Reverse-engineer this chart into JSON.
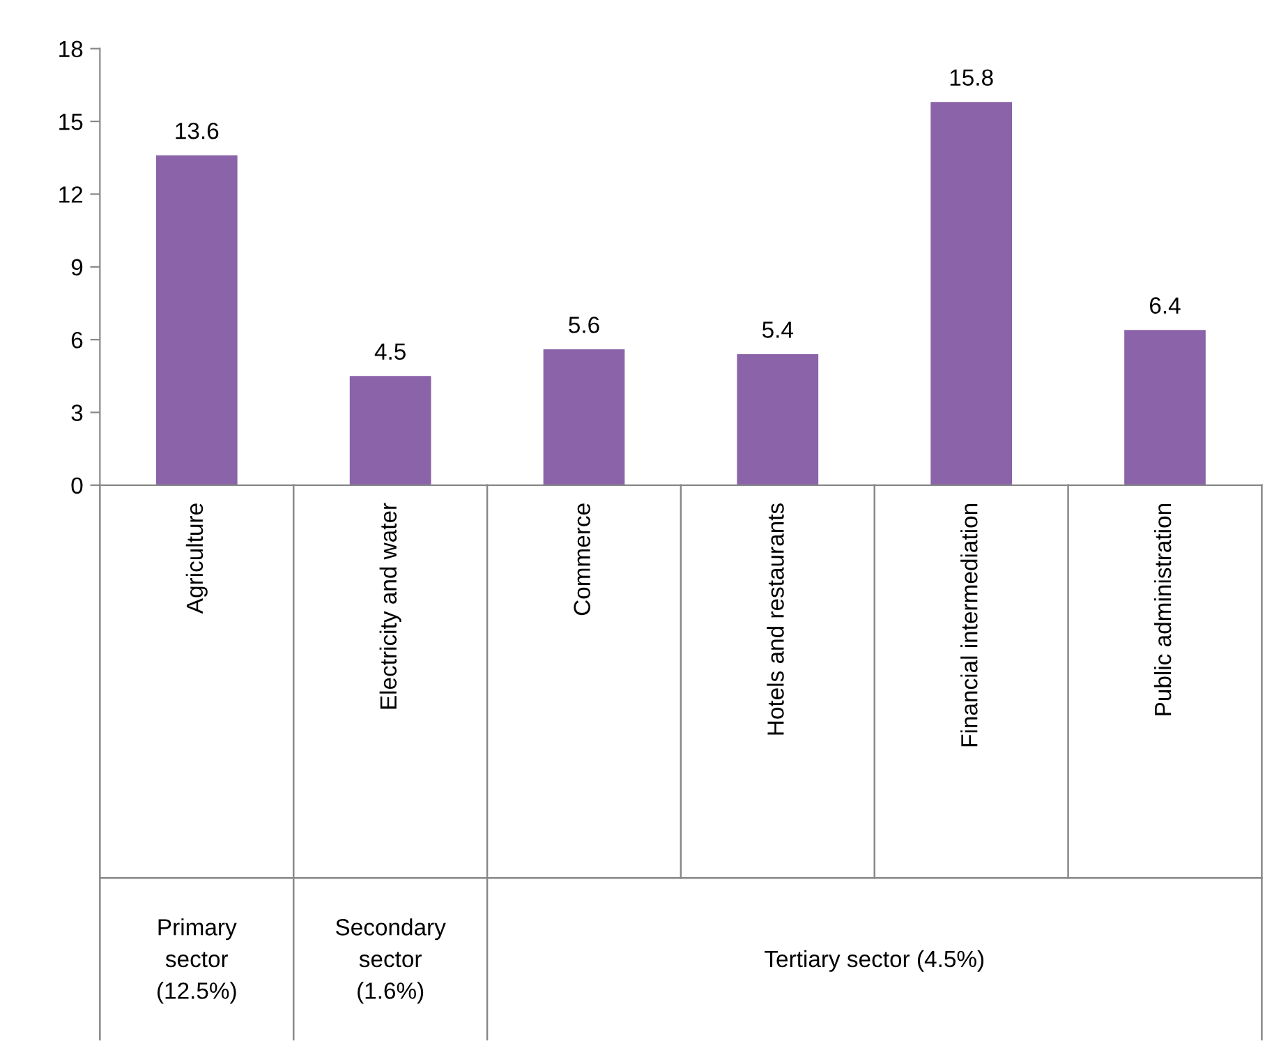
{
  "chart_data": {
    "type": "bar",
    "categories": [
      "Agriculture",
      "Electricity and water",
      "Commerce",
      "Hotels and restaurants",
      "Financial intermediation",
      "Public administration"
    ],
    "values": [
      13.6,
      4.5,
      5.6,
      5.4,
      15.8,
      6.4
    ],
    "color": "#8a63a8",
    "ylim": [
      0,
      18
    ],
    "yticks": [
      0,
      3,
      6,
      9,
      12,
      15,
      18
    ],
    "data_labels": true,
    "annotations": [
      "Primary sector (12.5%)",
      "Secondary sector (1.6%)",
      "Tertiary sector (4.5%)"
    ]
  }
}
